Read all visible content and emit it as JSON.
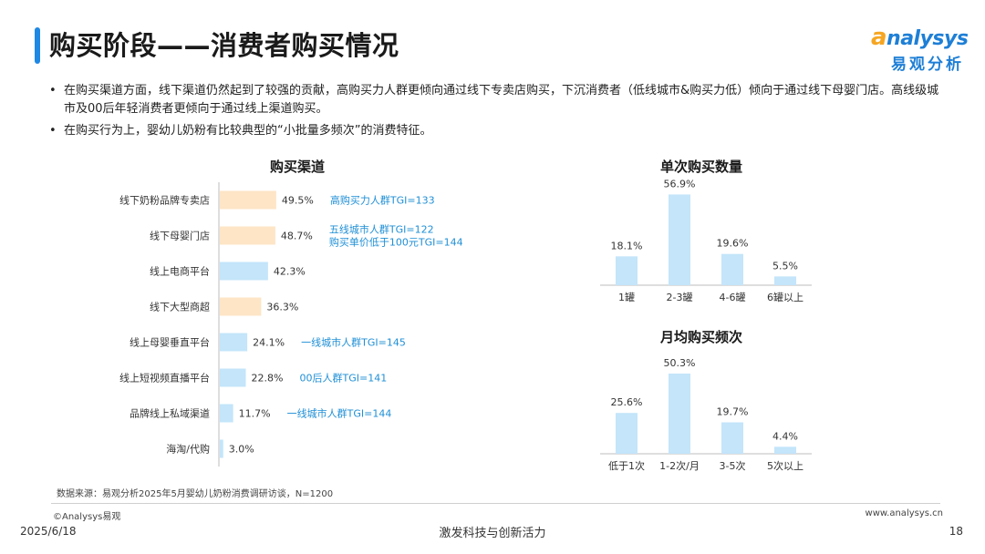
{
  "page": {
    "title": "购买阶段——消费者购买情况",
    "bullets": [
      "在购买渠道方面，线下渠道仍然起到了较强的贡献，高购买力人群更倾向通过线下专卖店购买，下沉消费者（低线城市&购买力低）倾向于通过线下母婴门店。高线级城市及00后年轻消费者更倾向于通过线上渠道购买。",
      "在购买行为上，婴幼儿奶粉有比较典型的“小批量多频次”的消费特征。"
    ],
    "bullet_marker": "•"
  },
  "logo": {
    "word_first": "a",
    "word_rest": "nalysys",
    "cn": "易观分析"
  },
  "colors": {
    "accent": "#1e88e5",
    "bar_blue": "#c4e5fa",
    "bar_orange": "#fde5c6",
    "annotation": "#1f8fd6"
  },
  "chart_data": [
    {
      "type": "bar",
      "orientation": "horizontal",
      "title": "购买渠道",
      "categories": [
        "线下奶粉品牌专卖店",
        "线下母婴门店",
        "线上电商平台",
        "线下大型商超",
        "线上母婴垂直平台",
        "线上短视频直播平台",
        "品牌线上私域渠道",
        "海淘/代购"
      ],
      "values": [
        49.5,
        48.7,
        42.3,
        36.3,
        24.1,
        22.8,
        11.7,
        3.0
      ],
      "value_labels": [
        "49.5%",
        "48.7%",
        "42.3%",
        "36.3%",
        "24.1%",
        "22.8%",
        "11.7%",
        "3.0%"
      ],
      "highlight": [
        true,
        true,
        false,
        true,
        false,
        false,
        false,
        false
      ],
      "annotations": [
        [
          "高购买力人群TGI=133"
        ],
        [
          "五线城市人群TGI=122",
          "购买单价低于100元TGI=144"
        ],
        [],
        [],
        [
          "一线城市人群TGI=145"
        ],
        [
          "00后人群TGI=141"
        ],
        [
          "一线城市人群TGI=144"
        ],
        []
      ]
    },
    {
      "type": "bar",
      "title": "单次购买数量",
      "categories": [
        "1罐",
        "2-3罐",
        "4-6罐",
        "6罐以上"
      ],
      "values": [
        18.1,
        56.9,
        19.6,
        5.5
      ],
      "value_labels": [
        "18.1%",
        "56.9%",
        "19.6%",
        "5.5%"
      ]
    },
    {
      "type": "bar",
      "title": "月均购买频次",
      "categories": [
        "低于1次",
        "1-2次/月",
        "3-5次",
        "5次以上"
      ],
      "values": [
        25.6,
        50.3,
        19.7,
        4.4
      ],
      "value_labels": [
        "25.6%",
        "50.3%",
        "19.7%",
        "4.4%"
      ]
    }
  ],
  "footer": {
    "source": "数据来源：易观分析2025年5月婴幼儿奶粉消费调研访谈，N=1200",
    "copyright": "©Analysys易观",
    "website": "www.analysys.cn",
    "date": "2025/6/18",
    "slogan": "激发科技与创新活力",
    "page_number": "18"
  }
}
